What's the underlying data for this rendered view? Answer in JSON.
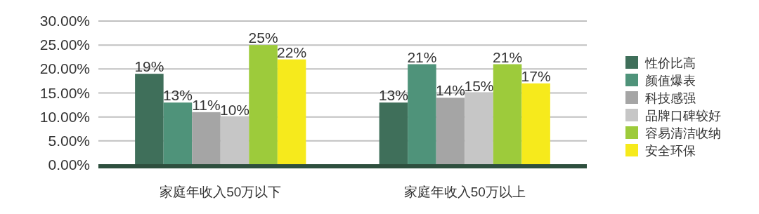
{
  "chart_data": {
    "type": "bar",
    "categories": [
      "家庭年收入50万以下",
      "家庭年收入50万以上"
    ],
    "series": [
      {
        "name": "性价比高",
        "color": "#3f6f5a",
        "values": [
          19,
          13
        ],
        "value_labels": [
          "19%",
          "13%"
        ]
      },
      {
        "name": "颜值爆表",
        "color": "#4f937a",
        "values": [
          13,
          21
        ],
        "value_labels": [
          "13%",
          "21%"
        ]
      },
      {
        "name": "科技感强",
        "color": "#a5a5a5",
        "values": [
          11,
          14
        ],
        "value_labels": [
          "11%",
          "14%"
        ]
      },
      {
        "name": "品牌口碑较好",
        "color": "#c6c6c6",
        "values": [
          10,
          15
        ],
        "value_labels": [
          "10%",
          "15%"
        ]
      },
      {
        "name": "容易清洁收纳",
        "color": "#9dcb3b",
        "values": [
          25,
          21
        ],
        "value_labels": [
          "25%",
          "21%"
        ]
      },
      {
        "name": "安全环保",
        "color": "#f6ea1c",
        "values": [
          22,
          17
        ],
        "value_labels": [
          "22%",
          "17%"
        ]
      }
    ],
    "ylim": [
      0,
      30
    ],
    "yticks": [
      {
        "value": 0,
        "label": "0.00%"
      },
      {
        "value": 5,
        "label": "5.00%"
      },
      {
        "value": 10,
        "label": "10.00%"
      },
      {
        "value": 15,
        "label": "15.00%"
      },
      {
        "value": 20,
        "label": "20.00%"
      },
      {
        "value": 25,
        "label": "25.00%"
      },
      {
        "value": 30,
        "label": "30.00%"
      }
    ],
    "grid": "y",
    "legend": "right"
  }
}
